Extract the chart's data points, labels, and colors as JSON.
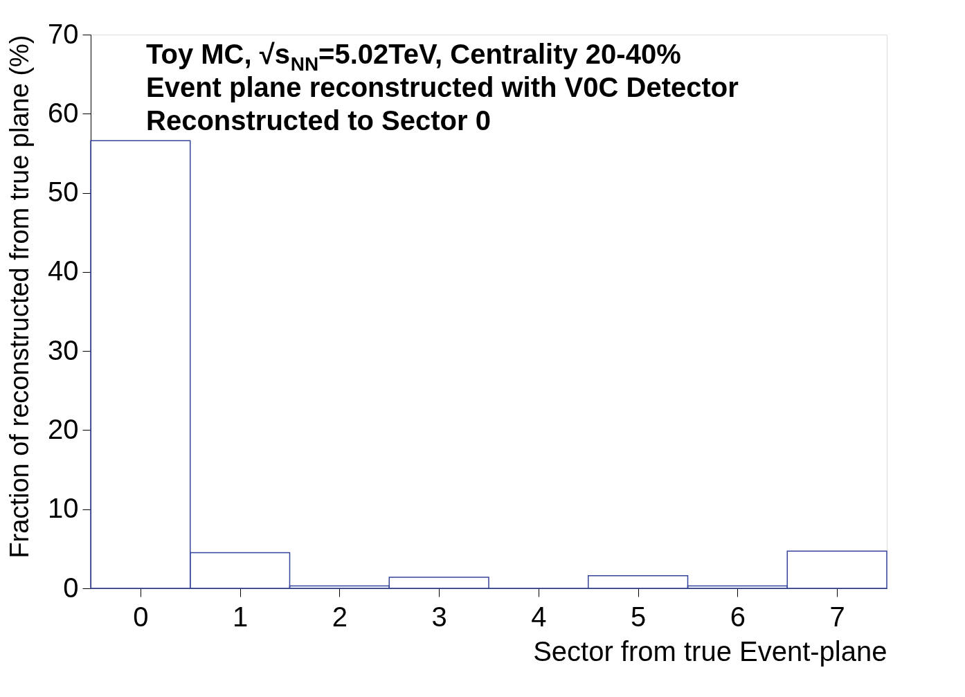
{
  "chart_data": {
    "type": "histogram",
    "xlabel": "Sector from true Event-plane",
    "ylabel": "Fraction of reconstructed from true plane (%)",
    "bins": [
      -0.5,
      0.5,
      1.5,
      2.5,
      3.5,
      4.5,
      5.5,
      6.5,
      7.5
    ],
    "values": [
      56.6,
      4.5,
      0.3,
      1.4,
      0,
      1.6,
      0.3,
      4.7
    ],
    "color": "#34449a",
    "xlim": [
      -0.5,
      7.5
    ],
    "xticks": [
      0,
      1,
      2,
      3,
      4,
      5,
      6,
      7
    ],
    "ylim": [
      0,
      70
    ],
    "yticks": [
      0,
      10,
      20,
      30,
      40,
      50,
      60,
      70
    ],
    "grid": false,
    "annotations": [
      "Toy MC, √s$_{NN}$=5.02TeV, Centrality 20-40%",
      "Event plane reconstructed with V0C Detector",
      "Reconstructed to Sector 0"
    ]
  }
}
